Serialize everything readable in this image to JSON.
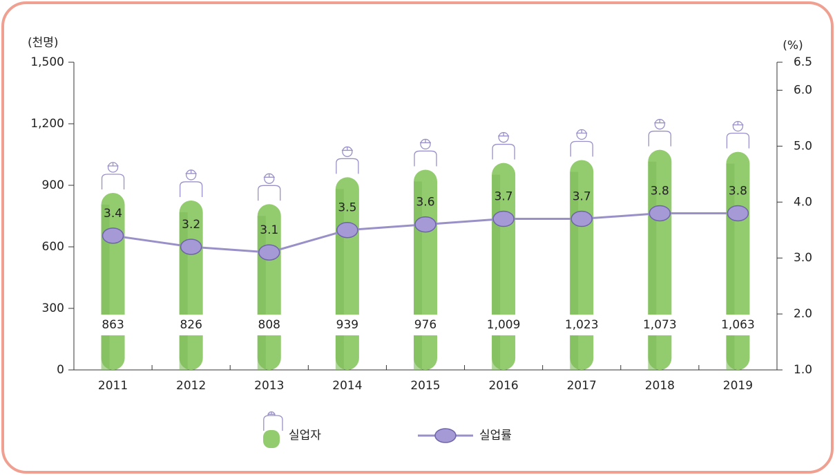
{
  "chart_data": {
    "type": "bar",
    "y_label": "(천명)",
    "y2_label": "(%)",
    "categories": [
      "2011",
      "2012",
      "2013",
      "2014",
      "2015",
      "2016",
      "2017",
      "2018",
      "2019"
    ],
    "series": [
      {
        "name": "실업자",
        "color": "#93cc6e",
        "values": [
          863,
          826,
          808,
          939,
          976,
          1009,
          1023,
          1073,
          1063
        ],
        "value_labels": [
          "863",
          "826",
          "808",
          "939",
          "976",
          "1,009",
          "1,023",
          "1,073",
          "1,063"
        ]
      },
      {
        "name": "실업률",
        "type": "line",
        "axis": "y2",
        "color": "#9a90c8",
        "values": [
          3.4,
          3.2,
          3.1,
          3.5,
          3.6,
          3.7,
          3.7,
          3.8,
          3.8
        ]
      }
    ],
    "ylim": [
      0,
      1500
    ],
    "yticks": [
      0,
      300,
      600,
      900,
      {
        "value": 1200,
        "label": "1,200"
      },
      {
        "value": 1500,
        "label": "1,500"
      }
    ],
    "y2lim": [
      1,
      6.5
    ],
    "y2ticks": [
      {
        "value": 1,
        "label": "1.0"
      },
      {
        "value": 2,
        "label": "2.0"
      },
      {
        "value": 3,
        "label": "3.0"
      },
      {
        "value": 4,
        "label": "4.0"
      },
      {
        "value": 5,
        "label": "5.0"
      },
      {
        "value": 6,
        "label": "6.0"
      },
      {
        "value": 6.5,
        "label": "6.5"
      }
    ]
  }
}
